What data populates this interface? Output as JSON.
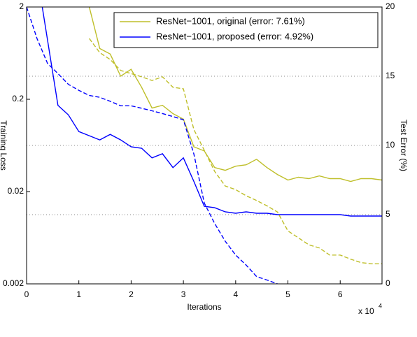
{
  "chart_data": {
    "type": "line",
    "x_label": "Iterations",
    "y_label": "Training Loss",
    "y2_label": "Test Error (%)",
    "x_multiplier": "x 10",
    "x_exponent": "4",
    "xlim": [
      0,
      6.8
    ],
    "xticks": [
      0,
      1,
      2,
      3,
      4,
      5,
      6
    ],
    "ylim": [
      0.002,
      2
    ],
    "yticks": [
      2,
      0.2,
      0.02,
      0.002
    ],
    "log_y": true,
    "y2lim": [
      0,
      20
    ],
    "y2ticks": [
      0,
      5,
      10,
      15,
      20
    ],
    "y2_grid": true,
    "legend": "upper right",
    "series": [
      {
        "name": "ResNet−1001, original (error: 7.61%)",
        "color": "#bfbf2a",
        "style": "solid",
        "axis": "y2",
        "x": [
          1.2,
          1.4,
          1.6,
          1.8,
          2.0,
          2.2,
          2.4,
          2.6,
          2.8,
          3.0,
          3.2,
          3.4,
          3.6,
          3.8,
          4.0,
          4.2,
          4.4,
          4.6,
          4.8,
          5.0,
          5.2,
          5.4,
          5.6,
          5.8,
          6.0,
          6.2,
          6.4,
          6.6,
          6.8
        ],
        "values": [
          20,
          17.0,
          16.6,
          15.0,
          15.5,
          14.2,
          12.7,
          12.9,
          12.3,
          11.9,
          9.9,
          9.6,
          8.4,
          8.2,
          8.5,
          8.6,
          9.0,
          8.4,
          7.9,
          7.5,
          7.7,
          7.6,
          7.8,
          7.6,
          7.6,
          7.4,
          7.6,
          7.6,
          7.5
        ]
      },
      {
        "name": "ResNet−1001, proposed (error: 4.92%)",
        "color": "#0000ff",
        "style": "solid",
        "axis": "y2",
        "x": [
          0.3,
          0.6,
          0.8,
          1.0,
          1.2,
          1.4,
          1.6,
          1.8,
          2.0,
          2.2,
          2.4,
          2.6,
          2.8,
          3.0,
          3.2,
          3.4,
          3.6,
          3.8,
          4.0,
          4.2,
          4.4,
          4.6,
          4.8,
          5.0,
          5.2,
          5.4,
          5.6,
          5.8,
          6.0,
          6.2,
          6.4,
          6.6,
          6.8
        ],
        "values": [
          20,
          12.9,
          12.2,
          11.0,
          10.7,
          10.4,
          10.8,
          10.4,
          9.9,
          9.8,
          9.1,
          9.4,
          8.4,
          9.1,
          7.4,
          5.6,
          5.5,
          5.2,
          5.1,
          5.2,
          5.1,
          5.1,
          5.0,
          5.0,
          5.0,
          5.0,
          5.0,
          5.0,
          5.0,
          4.9,
          4.9,
          4.9,
          4.9
        ]
      },
      {
        "color": "#bfbf2a",
        "style": "dashed",
        "axis": "y",
        "x": [
          1.2,
          1.4,
          1.6,
          1.8,
          2.0,
          2.2,
          2.4,
          2.6,
          2.8,
          3.0,
          3.2,
          3.4,
          3.6,
          3.8,
          4.0,
          4.2,
          4.4,
          4.6,
          4.8,
          5.0,
          5.2,
          5.4,
          5.6,
          5.8,
          6.0,
          6.2,
          6.4,
          6.6,
          6.8
        ],
        "values": [
          0.91,
          0.64,
          0.54,
          0.41,
          0.38,
          0.35,
          0.32,
          0.35,
          0.27,
          0.26,
          0.094,
          0.056,
          0.033,
          0.023,
          0.021,
          0.018,
          0.016,
          0.014,
          0.012,
          0.0075,
          0.0063,
          0.0053,
          0.0049,
          0.0041,
          0.0041,
          0.0037,
          0.0034,
          0.0033,
          0.0033
        ]
      },
      {
        "color": "#0000ff",
        "style": "dashed",
        "axis": "y",
        "x": [
          0,
          0.2,
          0.4,
          0.6,
          0.8,
          1.0,
          1.2,
          1.4,
          1.6,
          1.8,
          2.0,
          2.2,
          2.4,
          2.6,
          2.8,
          3.0,
          3.2,
          3.4,
          3.6,
          3.8,
          4.0,
          4.2,
          4.4,
          4.6,
          4.8
        ],
        "values": [
          2,
          0.91,
          0.49,
          0.38,
          0.29,
          0.25,
          0.22,
          0.21,
          0.19,
          0.17,
          0.17,
          0.16,
          0.15,
          0.14,
          0.13,
          0.12,
          0.051,
          0.015,
          0.009,
          0.0058,
          0.0041,
          0.0032,
          0.0024,
          0.0022,
          0.002
        ]
      }
    ]
  }
}
